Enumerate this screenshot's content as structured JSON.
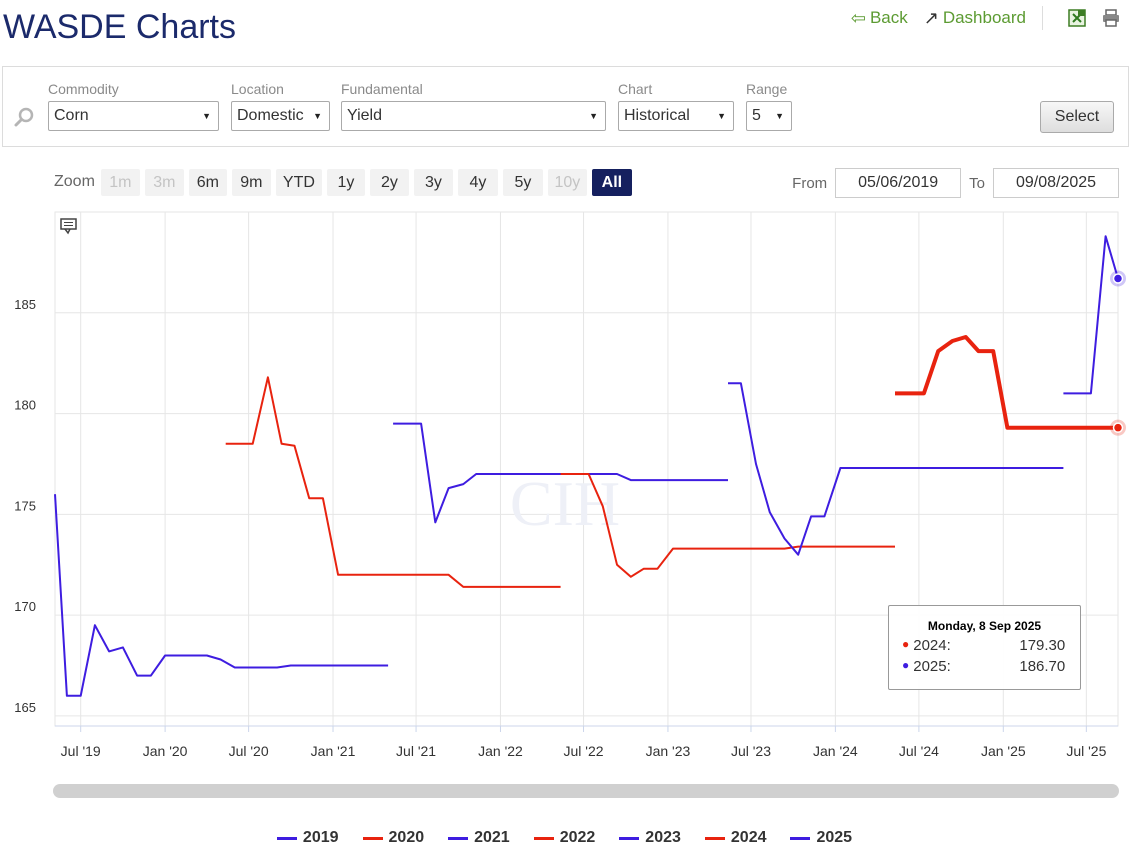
{
  "title": "WASDE Charts",
  "nav": {
    "back": "Back",
    "dashboard": "Dashboard"
  },
  "icons": [
    "back-arrow-icon",
    "pushpin-icon",
    "excel-icon",
    "print-icon",
    "search-icon",
    "chevron-down-icon",
    "comment-icon"
  ],
  "filters": {
    "commodity": {
      "label": "Commodity",
      "value": "Corn"
    },
    "location": {
      "label": "Location",
      "value": "Domestic"
    },
    "fundamental": {
      "label": "Fundamental",
      "value": "Yield"
    },
    "chart": {
      "label": "Chart",
      "value": "Historical"
    },
    "range": {
      "label": "Range",
      "value": "5"
    },
    "select_label": "Select"
  },
  "zoom": {
    "label": "Zoom",
    "buttons": [
      {
        "label": "1m",
        "state": "disabled"
      },
      {
        "label": "3m",
        "state": "disabled"
      },
      {
        "label": "6m",
        "state": "normal"
      },
      {
        "label": "9m",
        "state": "normal"
      },
      {
        "label": "YTD",
        "state": "normal"
      },
      {
        "label": "1y",
        "state": "normal"
      },
      {
        "label": "2y",
        "state": "normal"
      },
      {
        "label": "3y",
        "state": "normal"
      },
      {
        "label": "4y",
        "state": "normal"
      },
      {
        "label": "5y",
        "state": "normal"
      },
      {
        "label": "10y",
        "state": "disabled"
      },
      {
        "label": "All",
        "state": "active"
      }
    ]
  },
  "date_range": {
    "from_label": "From",
    "from": "05/06/2019",
    "to_label": "To",
    "to": "09/08/2025"
  },
  "colors": {
    "blue": "#3e1de0",
    "red": "#e8230f",
    "accent": "#15205f",
    "green": "#5c9b32"
  },
  "tooltip": {
    "date": "Monday, 8 Sep 2025",
    "rows": [
      {
        "name": "2024:",
        "value": "179.30",
        "color": "#e8230f"
      },
      {
        "name": "2025:",
        "value": "186.70",
        "color": "#3e1de0"
      }
    ]
  },
  "chart_data": {
    "type": "line",
    "x_axis": "date",
    "xlim": [
      "2019-05-06",
      "2025-09-08"
    ],
    "ylim": [
      164.5,
      190
    ],
    "grid": true,
    "legend_position": "bottom",
    "watermark": "CIH",
    "y_ticks": [
      165,
      170,
      175,
      180,
      185
    ],
    "x_ticks": [
      {
        "label": "Jul '19",
        "date": "2019-07-01"
      },
      {
        "label": "Jan '20",
        "date": "2020-01-01"
      },
      {
        "label": "Jul '20",
        "date": "2020-07-01"
      },
      {
        "label": "Jan '21",
        "date": "2021-01-01"
      },
      {
        "label": "Jul '21",
        "date": "2021-07-01"
      },
      {
        "label": "Jan '22",
        "date": "2022-01-01"
      },
      {
        "label": "Jul '22",
        "date": "2022-07-01"
      },
      {
        "label": "Jan '23",
        "date": "2023-01-01"
      },
      {
        "label": "Jul '23",
        "date": "2023-07-01"
      },
      {
        "label": "Jan '24",
        "date": "2024-01-01"
      },
      {
        "label": "Jul '24",
        "date": "2024-07-01"
      },
      {
        "label": "Jan '25",
        "date": "2025-01-01"
      },
      {
        "label": "Jul '25",
        "date": "2025-07-01"
      }
    ],
    "series": [
      {
        "name": "2019",
        "color": "#3e1de0",
        "data": [
          [
            "2019-05-06",
            176.0
          ],
          [
            "2019-06-01",
            166.0
          ],
          [
            "2019-07-01",
            166.0
          ],
          [
            "2019-08-01",
            169.5
          ],
          [
            "2019-09-01",
            168.2
          ],
          [
            "2019-10-01",
            168.4
          ],
          [
            "2019-11-01",
            167.0
          ],
          [
            "2019-12-01",
            167.0
          ],
          [
            "2020-01-01",
            168.0
          ],
          [
            "2020-02-01",
            168.0
          ],
          [
            "2020-03-01",
            168.0
          ],
          [
            "2020-04-01",
            168.0
          ],
          [
            "2020-05-01",
            167.8
          ],
          [
            "2020-06-01",
            167.4
          ],
          [
            "2020-07-01",
            167.4
          ],
          [
            "2020-08-01",
            167.4
          ],
          [
            "2020-09-01",
            167.4
          ],
          [
            "2020-10-01",
            167.5
          ],
          [
            "2020-11-01",
            167.5
          ],
          [
            "2020-12-01",
            167.5
          ],
          [
            "2021-01-01",
            167.5
          ],
          [
            "2021-02-01",
            167.5
          ],
          [
            "2021-03-01",
            167.5
          ],
          [
            "2021-04-01",
            167.5
          ],
          [
            "2021-05-01",
            167.5
          ]
        ]
      },
      {
        "name": "2020",
        "color": "#e8230f",
        "data": [
          [
            "2020-05-12",
            178.5
          ],
          [
            "2020-06-11",
            178.5
          ],
          [
            "2020-07-10",
            178.5
          ],
          [
            "2020-08-12",
            181.8
          ],
          [
            "2020-09-11",
            178.5
          ],
          [
            "2020-10-09",
            178.4
          ],
          [
            "2020-11-10",
            175.8
          ],
          [
            "2020-12-10",
            175.8
          ],
          [
            "2021-01-12",
            172.0
          ],
          [
            "2021-02-09",
            172.0
          ],
          [
            "2021-03-09",
            172.0
          ],
          [
            "2021-04-09",
            172.0
          ],
          [
            "2021-05-12",
            172.0
          ],
          [
            "2021-06-10",
            172.0
          ],
          [
            "2021-07-12",
            172.0
          ],
          [
            "2021-08-12",
            172.0
          ],
          [
            "2021-09-10",
            172.0
          ],
          [
            "2021-10-12",
            171.4
          ],
          [
            "2021-11-09",
            171.4
          ],
          [
            "2021-12-09",
            171.4
          ],
          [
            "2022-01-12",
            171.4
          ],
          [
            "2022-02-09",
            171.4
          ],
          [
            "2022-03-09",
            171.4
          ],
          [
            "2022-04-08",
            171.4
          ],
          [
            "2022-05-12",
            171.4
          ]
        ]
      },
      {
        "name": "2021",
        "color": "#3e1de0",
        "data": [
          [
            "2021-05-12",
            179.5
          ],
          [
            "2021-06-10",
            179.5
          ],
          [
            "2021-07-12",
            179.5
          ],
          [
            "2021-08-12",
            174.6
          ],
          [
            "2021-09-10",
            176.3
          ],
          [
            "2021-10-12",
            176.5
          ],
          [
            "2021-11-09",
            177.0
          ],
          [
            "2021-12-09",
            177.0
          ],
          [
            "2022-01-12",
            177.0
          ],
          [
            "2022-02-09",
            177.0
          ],
          [
            "2022-03-09",
            177.0
          ],
          [
            "2022-04-08",
            177.0
          ],
          [
            "2022-05-12",
            177.0
          ],
          [
            "2022-06-10",
            177.0
          ],
          [
            "2022-07-12",
            177.0
          ],
          [
            "2022-08-12",
            177.0
          ],
          [
            "2022-09-12",
            177.0
          ],
          [
            "2022-10-12",
            176.7
          ],
          [
            "2022-11-09",
            176.7
          ],
          [
            "2022-12-09",
            176.7
          ],
          [
            "2023-01-12",
            176.7
          ],
          [
            "2023-02-08",
            176.7
          ],
          [
            "2023-03-08",
            176.7
          ],
          [
            "2023-04-11",
            176.7
          ],
          [
            "2023-05-12",
            176.7
          ]
        ]
      },
      {
        "name": "2022",
        "color": "#e8230f",
        "data": [
          [
            "2022-05-12",
            177.0
          ],
          [
            "2022-06-10",
            177.0
          ],
          [
            "2022-07-12",
            177.0
          ],
          [
            "2022-08-12",
            175.4
          ],
          [
            "2022-09-12",
            172.5
          ],
          [
            "2022-10-12",
            171.9
          ],
          [
            "2022-11-09",
            172.3
          ],
          [
            "2022-12-09",
            172.3
          ],
          [
            "2023-01-12",
            173.3
          ],
          [
            "2023-02-08",
            173.3
          ],
          [
            "2023-03-08",
            173.3
          ],
          [
            "2023-04-11",
            173.3
          ],
          [
            "2023-05-12",
            173.3
          ],
          [
            "2023-06-09",
            173.3
          ],
          [
            "2023-07-12",
            173.3
          ],
          [
            "2023-08-11",
            173.3
          ],
          [
            "2023-09-12",
            173.3
          ],
          [
            "2023-10-12",
            173.4
          ],
          [
            "2023-11-09",
            173.4
          ],
          [
            "2023-12-08",
            173.4
          ],
          [
            "2024-01-12",
            173.4
          ],
          [
            "2024-02-08",
            173.4
          ],
          [
            "2024-03-08",
            173.4
          ],
          [
            "2024-04-11",
            173.4
          ],
          [
            "2024-05-10",
            173.4
          ]
        ]
      },
      {
        "name": "2023",
        "color": "#3e1de0",
        "data": [
          [
            "2023-05-12",
            181.5
          ],
          [
            "2023-06-09",
            181.5
          ],
          [
            "2023-07-12",
            177.5
          ],
          [
            "2023-08-11",
            175.1
          ],
          [
            "2023-09-12",
            173.8
          ],
          [
            "2023-10-12",
            173.0
          ],
          [
            "2023-11-09",
            174.9
          ],
          [
            "2023-12-08",
            174.9
          ],
          [
            "2024-01-12",
            177.3
          ],
          [
            "2024-02-08",
            177.3
          ],
          [
            "2024-03-08",
            177.3
          ],
          [
            "2024-04-11",
            177.3
          ],
          [
            "2024-05-10",
            177.3
          ],
          [
            "2024-06-12",
            177.3
          ],
          [
            "2024-07-12",
            177.3
          ],
          [
            "2024-08-12",
            177.3
          ],
          [
            "2024-09-12",
            177.3
          ],
          [
            "2024-10-11",
            177.3
          ],
          [
            "2024-11-08",
            177.3
          ],
          [
            "2024-12-10",
            177.3
          ],
          [
            "2025-01-10",
            177.3
          ],
          [
            "2025-02-11",
            177.3
          ],
          [
            "2025-03-11",
            177.3
          ],
          [
            "2025-04-10",
            177.3
          ],
          [
            "2025-05-12",
            177.3
          ]
        ]
      },
      {
        "name": "2024",
        "color": "#e8230f",
        "width": 4,
        "data": [
          [
            "2024-05-10",
            181.0
          ],
          [
            "2024-06-12",
            181.0
          ],
          [
            "2024-07-12",
            181.0
          ],
          [
            "2024-08-12",
            183.1
          ],
          [
            "2024-09-12",
            183.6
          ],
          [
            "2024-10-11",
            183.8
          ],
          [
            "2024-11-08",
            183.1
          ],
          [
            "2024-12-10",
            183.1
          ],
          [
            "2025-01-10",
            179.3
          ],
          [
            "2025-02-11",
            179.3
          ],
          [
            "2025-03-11",
            179.3
          ],
          [
            "2025-04-10",
            179.3
          ],
          [
            "2025-05-12",
            179.3
          ],
          [
            "2025-06-12",
            179.3
          ],
          [
            "2025-07-11",
            179.3
          ],
          [
            "2025-08-12",
            179.3
          ],
          [
            "2025-09-08",
            179.3
          ]
        ]
      },
      {
        "name": "2025",
        "color": "#3e1de0",
        "data": [
          [
            "2025-05-12",
            181.0
          ],
          [
            "2025-06-12",
            181.0
          ],
          [
            "2025-07-11",
            181.0
          ],
          [
            "2025-08-12",
            188.8
          ],
          [
            "2025-09-08",
            186.7
          ]
        ]
      }
    ]
  }
}
